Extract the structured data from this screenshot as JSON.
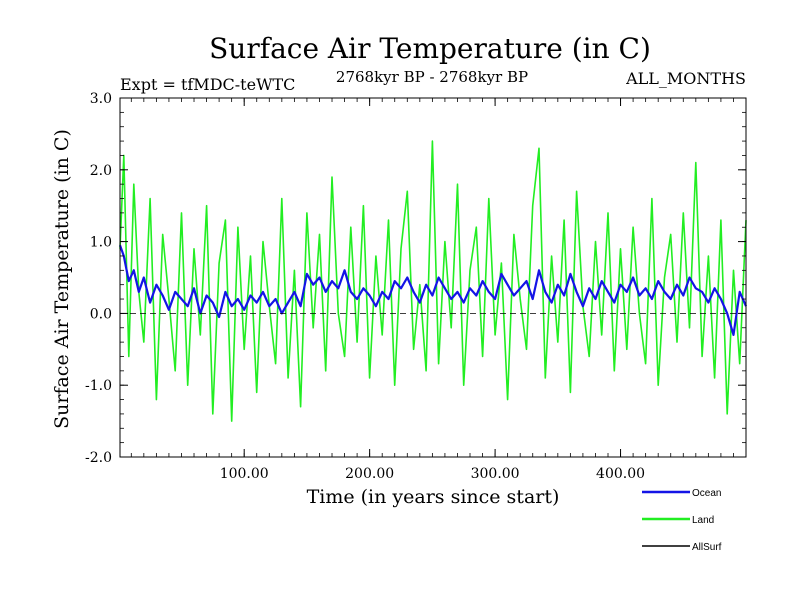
{
  "chart_data": {
    "type": "line",
    "title": "Surface Air Temperature (in C)",
    "subtitle": "2768kyr BP - 2768kyr BP",
    "experiment": "Expt = tfMDC-teWTC",
    "months": "ALL_MONTHS",
    "xlabel": "Time (in years since start)",
    "ylabel": "Surface Air Temperature (in C)",
    "xlim": [
      1,
      500
    ],
    "ylim": [
      -2.0,
      3.0
    ],
    "x_ticks": [
      {
        "value": 100,
        "label": "100.00"
      },
      {
        "value": 200,
        "label": "200.00"
      },
      {
        "value": 300,
        "label": "300.00"
      },
      {
        "value": 400,
        "label": "400.00"
      }
    ],
    "y_ticks": [
      {
        "value": 3.0,
        "label": "3.0"
      },
      {
        "value": 2.0,
        "label": "2.0"
      },
      {
        "value": 1.0,
        "label": "1.0"
      },
      {
        "value": 0.0,
        "label": "0.0"
      },
      {
        "value": -1.0,
        "label": "-1.0"
      },
      {
        "value": -2.0,
        "label": "-2.0"
      }
    ],
    "reference_line": 0.0,
    "series": [
      {
        "name": "Land",
        "color": "#22ee22",
        "x": [
          1,
          4,
          8,
          12,
          16,
          20,
          25,
          30,
          35,
          40,
          45,
          50,
          55,
          60,
          65,
          70,
          75,
          80,
          85,
          90,
          95,
          100,
          105,
          110,
          115,
          120,
          125,
          130,
          135,
          140,
          145,
          150,
          155,
          160,
          165,
          170,
          175,
          180,
          185,
          190,
          195,
          200,
          205,
          210,
          215,
          220,
          225,
          230,
          235,
          240,
          245,
          250,
          255,
          260,
          265,
          270,
          275,
          280,
          285,
          290,
          295,
          300,
          305,
          310,
          315,
          320,
          325,
          330,
          335,
          340,
          345,
          350,
          355,
          360,
          365,
          370,
          375,
          380,
          385,
          390,
          395,
          400,
          405,
          410,
          415,
          420,
          425,
          430,
          435,
          440,
          445,
          450,
          455,
          460,
          465,
          470,
          475,
          480,
          485,
          490,
          495,
          500
        ],
        "values": [
          0.9,
          2.2,
          -0.6,
          1.8,
          0.3,
          -0.4,
          1.6,
          -1.2,
          1.1,
          0.2,
          -0.8,
          1.4,
          -1.0,
          0.9,
          -0.3,
          1.5,
          -1.4,
          0.7,
          1.3,
          -1.5,
          1.2,
          -0.5,
          0.8,
          -1.1,
          1.0,
          0.1,
          -0.7,
          1.6,
          -0.9,
          0.6,
          -1.3,
          1.4,
          -0.2,
          1.1,
          -0.8,
          1.9,
          0.0,
          -0.6,
          1.2,
          -0.4,
          1.5,
          -0.9,
          0.8,
          -0.3,
          1.3,
          -1.0,
          0.9,
          1.7,
          -0.5,
          0.4,
          -0.8,
          2.4,
          -0.7,
          1.0,
          -0.2,
          1.8,
          -1.0,
          0.6,
          1.2,
          -0.6,
          1.6,
          -0.3,
          0.7,
          -1.2,
          1.1,
          0.2,
          -0.5,
          1.5,
          2.3,
          -0.9,
          0.8,
          -0.4,
          1.3,
          -1.1,
          1.7,
          0.1,
          -0.6,
          1.0,
          -0.3,
          1.4,
          -0.8,
          0.9,
          -0.5,
          1.2,
          0.0,
          -0.7,
          1.6,
          -1.0,
          0.5,
          1.1,
          -0.4,
          1.4,
          -0.2,
          2.1,
          -0.6,
          0.8,
          -0.9,
          1.3,
          -1.4,
          0.6,
          -0.7,
          1.3
        ]
      },
      {
        "name": "Ocean",
        "color": "#1414e6",
        "x": [
          1,
          4,
          8,
          12,
          16,
          20,
          25,
          30,
          35,
          40,
          45,
          50,
          55,
          60,
          65,
          70,
          75,
          80,
          85,
          90,
          95,
          100,
          105,
          110,
          115,
          120,
          125,
          130,
          135,
          140,
          145,
          150,
          155,
          160,
          165,
          170,
          175,
          180,
          185,
          190,
          195,
          200,
          205,
          210,
          215,
          220,
          225,
          230,
          235,
          240,
          245,
          250,
          255,
          260,
          265,
          270,
          275,
          280,
          285,
          290,
          295,
          300,
          305,
          310,
          315,
          320,
          325,
          330,
          335,
          340,
          345,
          350,
          355,
          360,
          365,
          370,
          375,
          380,
          385,
          390,
          395,
          400,
          405,
          410,
          415,
          420,
          425,
          430,
          435,
          440,
          445,
          450,
          455,
          460,
          465,
          470,
          475,
          480,
          485,
          490,
          495,
          500
        ],
        "values": [
          0.95,
          0.8,
          0.45,
          0.6,
          0.3,
          0.5,
          0.15,
          0.4,
          0.25,
          0.05,
          0.3,
          0.2,
          0.1,
          0.35,
          0.0,
          0.25,
          0.15,
          -0.05,
          0.3,
          0.1,
          0.2,
          0.05,
          0.25,
          0.15,
          0.3,
          0.1,
          0.2,
          0.0,
          0.15,
          0.3,
          0.1,
          0.55,
          0.4,
          0.5,
          0.3,
          0.45,
          0.35,
          0.6,
          0.3,
          0.2,
          0.35,
          0.25,
          0.1,
          0.3,
          0.2,
          0.45,
          0.35,
          0.5,
          0.3,
          0.15,
          0.4,
          0.25,
          0.5,
          0.35,
          0.2,
          0.3,
          0.15,
          0.35,
          0.25,
          0.45,
          0.3,
          0.2,
          0.55,
          0.4,
          0.25,
          0.35,
          0.45,
          0.2,
          0.6,
          0.3,
          0.15,
          0.4,
          0.25,
          0.55,
          0.3,
          0.1,
          0.35,
          0.2,
          0.45,
          0.3,
          0.15,
          0.4,
          0.3,
          0.5,
          0.25,
          0.35,
          0.2,
          0.45,
          0.3,
          0.2,
          0.4,
          0.25,
          0.5,
          0.35,
          0.3,
          0.15,
          0.35,
          0.2,
          0.0,
          -0.3,
          0.3,
          0.1
        ]
      },
      {
        "name": "AllSurf",
        "color": "#000000",
        "x": [],
        "values": []
      }
    ],
    "legend_position": "bottom-right"
  }
}
